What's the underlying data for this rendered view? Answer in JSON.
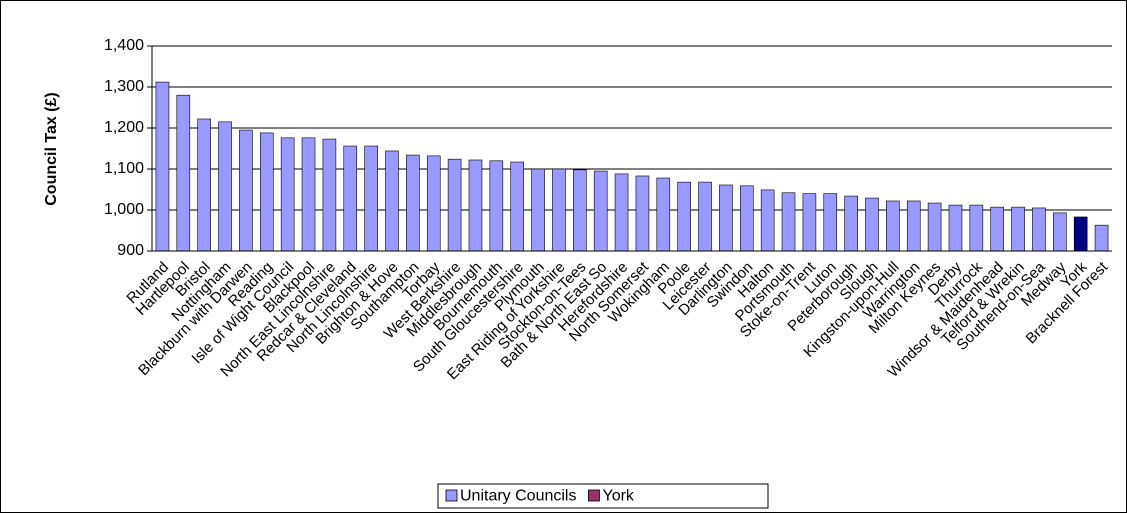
{
  "chart_data": {
    "type": "bar",
    "y_label": "Council Tax (£)",
    "categories": [
      "Rutland",
      "Hartlepool",
      "Bristol",
      "Nottingham",
      "Blackburn with Darwen",
      "Reading",
      "Isle of Wight Council",
      "Blackpool",
      "North East Lincolnshire",
      "Redcar & Cleveland",
      "North Lincolnshire",
      "Brighton & Hove",
      "Southampton",
      "Torbay",
      "West Berkshire",
      "Middlesbrough",
      "Bournemouth",
      "South Gloucestershire",
      "Plymouth",
      "East Riding of Yorkshire",
      "Stockton-on-Tees",
      "Bath & North East So",
      "Herefordshire",
      "North Somerset",
      "Wokingham",
      "Poole",
      "Leicester",
      "Darlington",
      "Swindon",
      "Halton",
      "Portsmouth",
      "Stoke-on-Trent",
      "Luton",
      "Peterborough",
      "Slough",
      "Kingston-upon-Hull",
      "Warrington",
      "Milton Keynes",
      "Derby",
      "Thurrock",
      "Windsor & Maidenhead",
      "Telford & Wrekin",
      "Southend-on-Sea",
      "Medway",
      "York",
      "Bracknell Forest"
    ],
    "series": [
      {
        "name": "Unitary Councils",
        "color": "#9999ff",
        "values": [
          1312,
          1280,
          1222,
          1215,
          1195,
          1188,
          1176,
          1176,
          1173,
          1156,
          1156,
          1144,
          1134,
          1132,
          1124,
          1122,
          1120,
          1117,
          1100,
          1100,
          1098,
          1095,
          1088,
          1083,
          1078,
          1068,
          1068,
          1061,
          1059,
          1049,
          1042,
          1040,
          1040,
          1034,
          1029,
          1022,
          1022,
          1017,
          1012,
          1012,
          1007,
          1007,
          1005,
          993,
          null,
          963
        ]
      },
      {
        "name": "York",
        "color": "#993366",
        "bar_color": "#000080",
        "values": [
          null,
          null,
          null,
          null,
          null,
          null,
          null,
          null,
          null,
          null,
          null,
          null,
          null,
          null,
          null,
          null,
          null,
          null,
          null,
          null,
          null,
          null,
          null,
          null,
          null,
          null,
          null,
          null,
          null,
          null,
          null,
          null,
          null,
          null,
          null,
          null,
          null,
          null,
          null,
          null,
          null,
          null,
          null,
          null,
          983,
          null
        ]
      }
    ],
    "ylim": [
      900,
      1400
    ],
    "yticks": [
      900,
      {
        "value": 1000,
        "label": "1,000"
      },
      {
        "value": 1100,
        "label": "1,100"
      },
      {
        "value": 1200,
        "label": "1,200"
      },
      {
        "value": 1300,
        "label": "1,300"
      },
      {
        "value": 1400,
        "label": "1,400"
      }
    ],
    "grid": true,
    "legend": "bottom"
  }
}
